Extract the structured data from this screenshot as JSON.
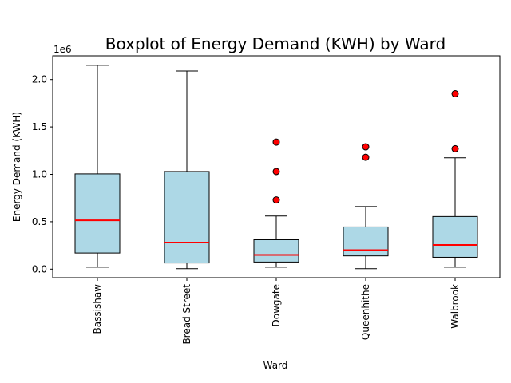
{
  "chart_data": {
    "type": "boxplot",
    "title": "Boxplot of Energy Demand (KWH) by Ward",
    "xlabel": "Ward",
    "ylabel": "Energy Demand (KWH)",
    "y_offset_text": "1e6",
    "ylim": [
      -90000,
      2250000
    ],
    "yticks": [
      0,
      500000,
      1000000,
      1500000,
      2000000
    ],
    "ytick_labels": [
      "0.0",
      "0.5",
      "1.0",
      "1.5",
      "2.0"
    ],
    "grid": false,
    "colors": {
      "box_fill": "#add8e6",
      "median": "#ff0000",
      "outlier_fill": "#ff0000",
      "outlier_edge": "#000000",
      "line": "#000000"
    },
    "categories": [
      "Bassishaw",
      "Bread Street",
      "Dowgate",
      "Queenhithe",
      "Walbrook"
    ],
    "boxes": [
      {
        "whisker_low": 20000,
        "q1": 170000,
        "median": 515000,
        "q3": 1005000,
        "whisker_high": 2150000,
        "outliers": []
      },
      {
        "whisker_low": 5000,
        "q1": 65000,
        "median": 280000,
        "q3": 1030000,
        "whisker_high": 2090000,
        "outliers": []
      },
      {
        "whisker_low": 20000,
        "q1": 75000,
        "median": 150000,
        "q3": 310000,
        "whisker_high": 560000,
        "outliers": [
          730000,
          1030000,
          1340000
        ]
      },
      {
        "whisker_low": 5000,
        "q1": 140000,
        "median": 200000,
        "q3": 445000,
        "whisker_high": 660000,
        "outliers": [
          1180000,
          1290000
        ]
      },
      {
        "whisker_low": 20000,
        "q1": 125000,
        "median": 255000,
        "q3": 555000,
        "whisker_high": 1175000,
        "outliers": [
          1270000,
          1850000
        ]
      }
    ]
  }
}
